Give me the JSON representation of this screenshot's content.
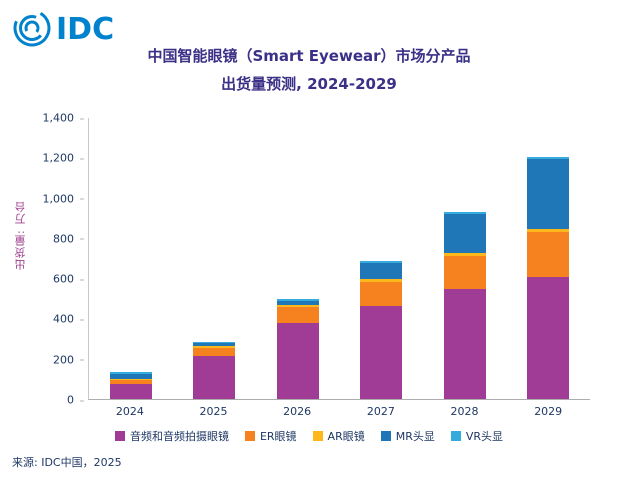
{
  "logo": {
    "text": "IDC"
  },
  "title": {
    "line1": "中国智能眼镜（Smart Eyewear）市场分产品",
    "line2": "出货量预测, 2024-2029"
  },
  "source": "来源: IDC中国，2025",
  "colors": {
    "logo_blue": "#0083CC",
    "title_text": "#3B3087",
    "axis_text": "#1F3864",
    "ylabel_text": "#A0408E"
  },
  "chart_data": {
    "type": "bar",
    "stacked": true,
    "title": "中国智能眼镜（Smart Eyewear）市场分产品 出货量预测, 2024-2029",
    "ylabel": "出货量: 万台",
    "xlabel": "",
    "ylim": [
      0,
      1400
    ],
    "yticks": [
      0,
      200,
      400,
      600,
      800,
      1000,
      1200,
      1400
    ],
    "ytick_labels": [
      "0",
      "200",
      "400",
      "600",
      "800",
      "1,000",
      "1,200",
      "1,400"
    ],
    "grid": false,
    "legend_position": "bottom",
    "categories": [
      "2024",
      "2025",
      "2026",
      "2027",
      "2028",
      "2029"
    ],
    "series": [
      {
        "name": "音频和音频拍摄眼镜",
        "color": "#A03C96",
        "values": [
          75,
          215,
          380,
          465,
          550,
          610
        ]
      },
      {
        "name": "ER眼镜",
        "color": "#F5821F",
        "values": [
          20,
          40,
          80,
          120,
          165,
          220
        ]
      },
      {
        "name": "AR眼镜",
        "color": "#FFB81C",
        "values": [
          5,
          8,
          10,
          15,
          15,
          15
        ]
      },
      {
        "name": "MR头显",
        "color": "#1F77B8",
        "values": [
          25,
          15,
          20,
          80,
          190,
          350
        ]
      },
      {
        "name": "VR头显",
        "color": "#35AADC",
        "values": [
          10,
          8,
          8,
          10,
          10,
          10
        ]
      }
    ]
  }
}
